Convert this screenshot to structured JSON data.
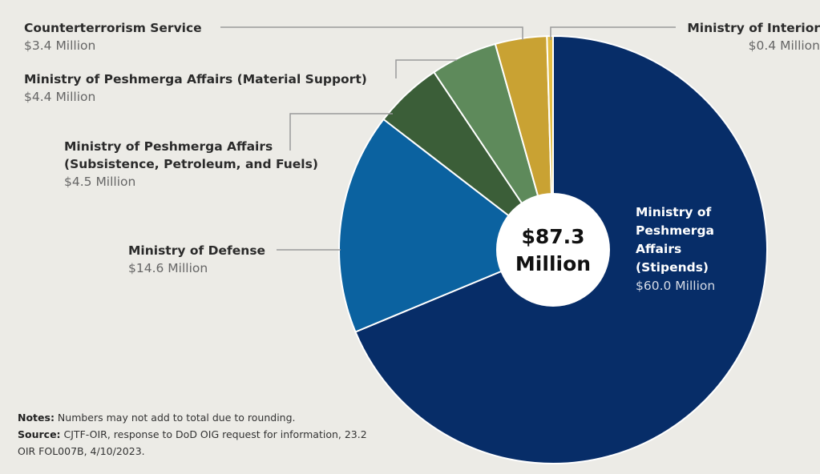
{
  "chart_data": {
    "type": "pie",
    "center_label": [
      "$87.3",
      "Million"
    ],
    "slices": [
      {
        "name_lines": [
          "Ministry of",
          "Peshmerga",
          "Affairs",
          "(Stipends)"
        ],
        "value_label": "$60.0 Million",
        "value": 60.0,
        "color": "#072d68"
      },
      {
        "name_lines": [
          "Ministry of Defense"
        ],
        "value_label": "$14.6 Million",
        "value": 14.6,
        "color": "#0b62a0"
      },
      {
        "name_lines": [
          "Ministry of Peshmerga Affairs",
          "(Subsistence, Petroleum, and Fuels)"
        ],
        "value_label": "$4.5 Million",
        "value": 4.5,
        "color": "#3b5e38"
      },
      {
        "name_lines": [
          "Ministry of Peshmerga Affairs (Material Support)"
        ],
        "value_label": "$4.4 Million",
        "value": 4.4,
        "color": "#5e8a5b"
      },
      {
        "name_lines": [
          "Counterterrorism Service"
        ],
        "value_label": "$3.4 Million",
        "value": 3.4,
        "color": "#c9a233"
      },
      {
        "name_lines": [
          "Ministry of Interior"
        ],
        "value_label": "$0.4 Million",
        "value": 0.4,
        "color": "#e2bd42"
      }
    ]
  },
  "notes": {
    "notes_label": "Notes:",
    "notes_text": " Numbers may not add to total due to rounding.",
    "source_label": "Source:",
    "source_text": " CJTF-OIR, response to DoD OIG request for information, 23.2 OIR FOL007B, 4/10/2023."
  }
}
